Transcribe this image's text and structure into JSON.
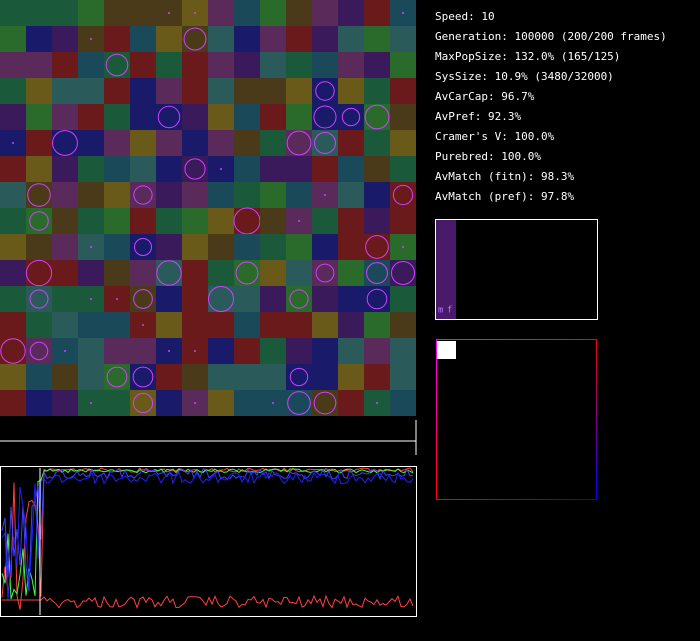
{
  "stats": [
    "Speed: 10",
    "Generation: 100000 (200/200 frames)",
    "MaxPopSize: 132.0% (165/125)",
    "SysSize: 10.9% (3480/32000)",
    "AvCarCap: 96.7%",
    "AvPref: 92.3%",
    "Cramer's V: 100.0%",
    "Purebred: 100.0%",
    "AvMatch (fitn): 98.3%",
    "AvMatch (pref): 97.8%"
  ],
  "mating_chart": {
    "labels": [
      "m",
      "f"
    ]
  }
}
